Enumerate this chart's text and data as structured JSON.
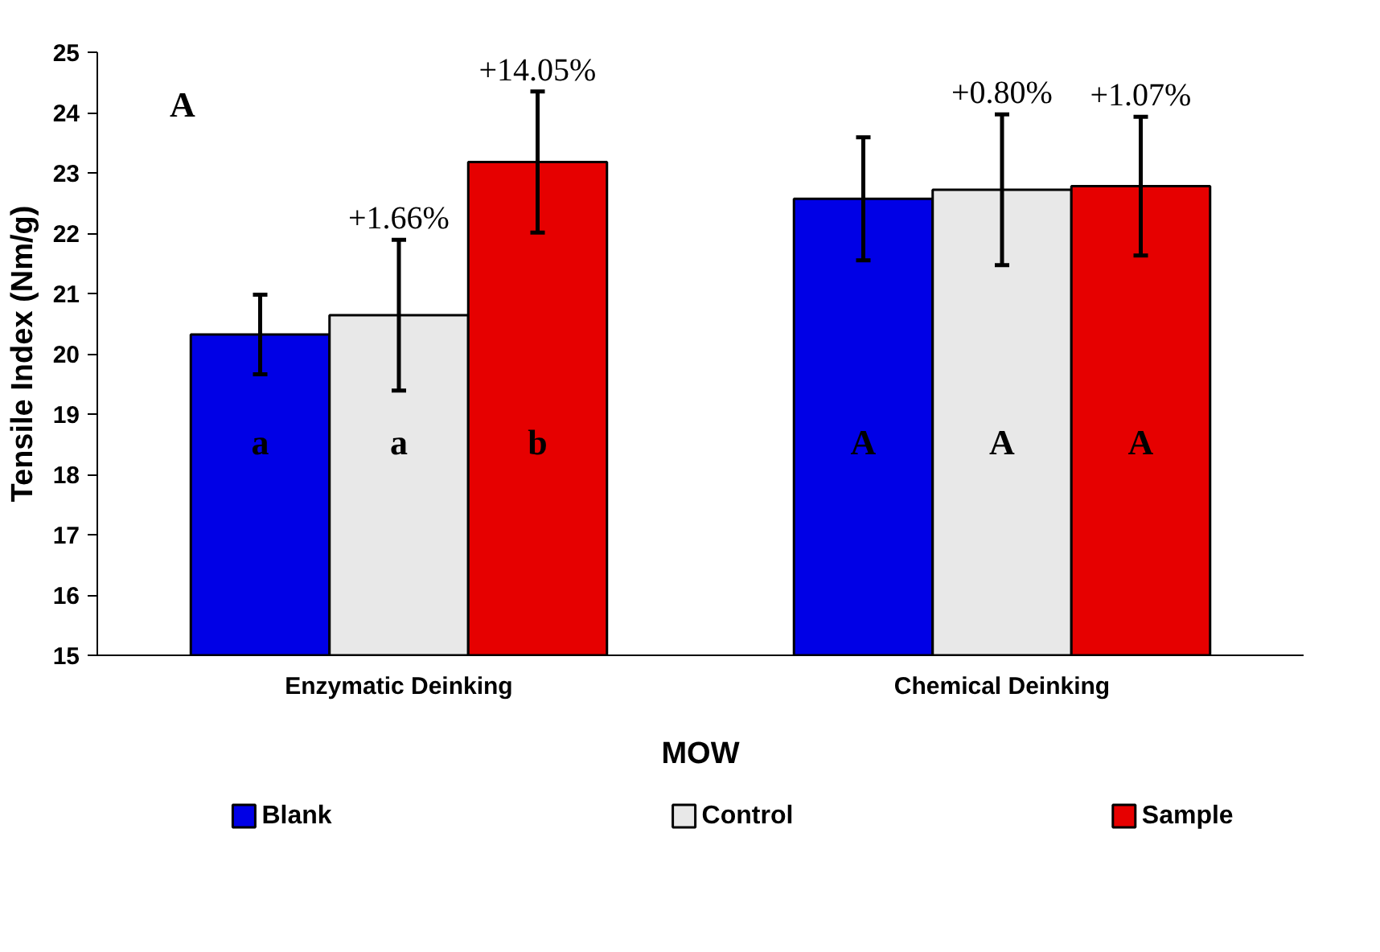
{
  "chart_data": {
    "type": "bar",
    "xlabel": "MOW",
    "ylabel": "Tensile Index (Nm/g)",
    "categories": [
      "Enzymatic Deinking",
      "Chemical Deinking"
    ],
    "series": [
      {
        "name": "Blank",
        "color": "#0000e6",
        "values": [
          20.32,
          22.57
        ],
        "errors": [
          0.66,
          1.02
        ]
      },
      {
        "name": "Control",
        "color": "#e8e8e8",
        "values": [
          20.64,
          22.72
        ],
        "errors": [
          1.25,
          1.25
        ]
      },
      {
        "name": "Sample",
        "color": "#e60000",
        "values": [
          23.18,
          22.78
        ],
        "errors": [
          1.17,
          1.15
        ]
      }
    ],
    "ylim": [
      15,
      25
    ],
    "yticks": [
      15,
      16,
      17,
      18,
      19,
      20,
      21,
      22,
      23,
      24,
      25
    ],
    "annotations": [
      "A",
      "a",
      "a",
      "b",
      "A",
      "A",
      "A",
      {
        "text": "+1.66%",
        "x": "Enzymatic Deinking",
        "y": 21.89
      },
      "+14.05%",
      {
        "text": "+0.80%",
        "x": "Chemical Deinking",
        "y": 23.97
      },
      {
        "text": "+1.07%",
        "x": "Chemical Deinking",
        "y": 23.93
      }
    ],
    "legend": "bottom",
    "grid": false
  }
}
